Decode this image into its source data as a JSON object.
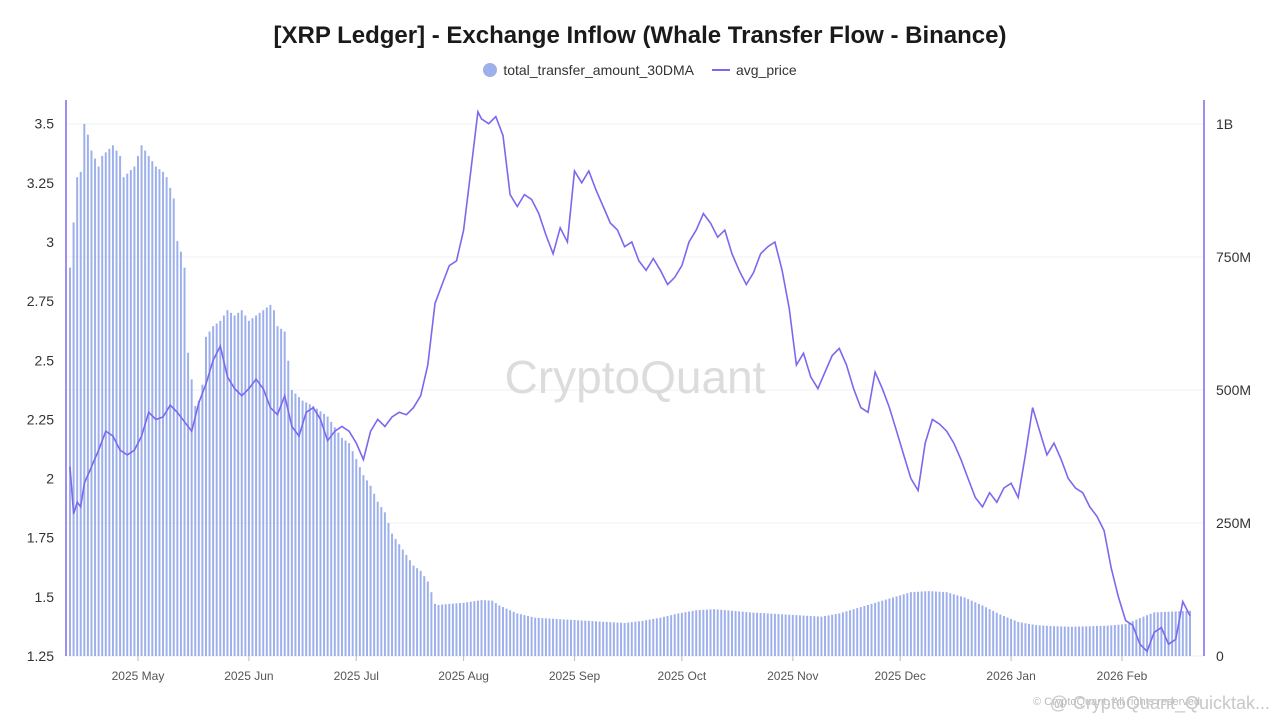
{
  "chart_data": {
    "type": "bar+line",
    "title": "[XRP Ledger] - Exchange Inflow (Whale Transfer Flow - Binance)",
    "legend": [
      {
        "name": "total_transfer_amount_30DMA",
        "marker": "dot",
        "color": "#9db0ec"
      },
      {
        "name": "avg_price",
        "marker": "line",
        "color": "#7b68ee"
      }
    ],
    "left_axis": {
      "series": "avg_price",
      "min": 1.25,
      "max": 3.6,
      "ticks": [
        "3.5",
        "3.25",
        "3",
        "2.75",
        "2.5",
        "2.25",
        "2",
        "1.75",
        "1.5",
        "1.25"
      ],
      "tick_values": [
        3.5,
        3.25,
        3,
        2.75,
        2.5,
        2.25,
        2,
        1.75,
        1.5,
        1.25
      ]
    },
    "right_axis": {
      "series": "total_transfer_amount_30DMA",
      "min": 0,
      "max": 1000000000,
      "ticks": [
        "1B",
        "750M",
        "500M",
        "250M",
        "0"
      ],
      "tick_values": [
        1000000000,
        750000000,
        500000000,
        250000000,
        0
      ]
    },
    "x_axis": {
      "labels": [
        "2025 May",
        "2025 Jun",
        "2025 Jul",
        "2025 Aug",
        "2025 Sep",
        "2025 Oct",
        "2025 Nov",
        "2025 Dec",
        "2026 Jan",
        "2026 Feb"
      ],
      "label_day_index": [
        19,
        50,
        80,
        110,
        141,
        171,
        202,
        232,
        263,
        294
      ],
      "start": "2025-04-12",
      "days": 313
    },
    "transfer_keys": [
      [
        0,
        730
      ],
      [
        2,
        900
      ],
      [
        3,
        910
      ],
      [
        4,
        1000
      ],
      [
        5,
        980
      ],
      [
        6,
        950
      ],
      [
        8,
        920
      ],
      [
        9,
        940
      ],
      [
        12,
        960
      ],
      [
        14,
        940
      ],
      [
        15,
        900
      ],
      [
        18,
        920
      ],
      [
        20,
        960
      ],
      [
        22,
        940
      ],
      [
        24,
        920
      ],
      [
        26,
        910
      ],
      [
        27,
        900
      ],
      [
        28,
        880
      ],
      [
        29,
        860
      ],
      [
        30,
        780
      ],
      [
        31,
        760
      ],
      [
        32,
        730
      ],
      [
        33,
        570
      ],
      [
        34,
        520
      ],
      [
        35,
        470
      ],
      [
        36,
        480
      ],
      [
        37,
        510
      ],
      [
        38,
        600
      ],
      [
        40,
        620
      ],
      [
        42,
        630
      ],
      [
        44,
        650
      ],
      [
        46,
        640
      ],
      [
        48,
        650
      ],
      [
        50,
        630
      ],
      [
        52,
        640
      ],
      [
        54,
        650
      ],
      [
        56,
        660
      ],
      [
        57,
        650
      ],
      [
        58,
        620
      ],
      [
        60,
        610
      ],
      [
        62,
        500
      ],
      [
        65,
        480
      ],
      [
        68,
        470
      ],
      [
        70,
        460
      ],
      [
        72,
        450
      ],
      [
        74,
        430
      ],
      [
        76,
        410
      ],
      [
        78,
        400
      ],
      [
        80,
        370
      ],
      [
        82,
        340
      ],
      [
        84,
        320
      ],
      [
        86,
        290
      ],
      [
        88,
        270
      ],
      [
        90,
        230
      ],
      [
        92,
        210
      ],
      [
        94,
        190
      ],
      [
        96,
        170
      ],
      [
        98,
        160
      ],
      [
        100,
        140
      ],
      [
        101,
        120
      ],
      [
        102,
        98
      ],
      [
        103,
        96
      ],
      [
        106,
        98
      ],
      [
        110,
        100
      ],
      [
        115,
        105
      ],
      [
        118,
        104
      ],
      [
        120,
        95
      ],
      [
        125,
        80
      ],
      [
        130,
        72
      ],
      [
        135,
        70
      ],
      [
        140,
        68
      ],
      [
        145,
        66
      ],
      [
        150,
        64
      ],
      [
        155,
        62
      ],
      [
        160,
        66
      ],
      [
        165,
        72
      ],
      [
        170,
        80
      ],
      [
        175,
        86
      ],
      [
        180,
        88
      ],
      [
        185,
        85
      ],
      [
        190,
        82
      ],
      [
        195,
        80
      ],
      [
        200,
        78
      ],
      [
        205,
        76
      ],
      [
        210,
        74
      ],
      [
        215,
        80
      ],
      [
        220,
        90
      ],
      [
        225,
        100
      ],
      [
        230,
        110
      ],
      [
        235,
        120
      ],
      [
        240,
        122
      ],
      [
        245,
        120
      ],
      [
        250,
        110
      ],
      [
        255,
        95
      ],
      [
        260,
        78
      ],
      [
        265,
        64
      ],
      [
        270,
        58
      ],
      [
        275,
        56
      ],
      [
        280,
        55
      ],
      [
        285,
        56
      ],
      [
        290,
        57
      ],
      [
        295,
        60
      ],
      [
        300,
        74
      ],
      [
        303,
        82
      ],
      [
        313,
        85
      ]
    ],
    "price_keys": [
      [
        0,
        2.05
      ],
      [
        1,
        1.85
      ],
      [
        2,
        1.9
      ],
      [
        3,
        1.88
      ],
      [
        4,
        1.98
      ],
      [
        6,
        2.05
      ],
      [
        8,
        2.12
      ],
      [
        10,
        2.2
      ],
      [
        12,
        2.18
      ],
      [
        14,
        2.12
      ],
      [
        16,
        2.1
      ],
      [
        18,
        2.12
      ],
      [
        20,
        2.18
      ],
      [
        22,
        2.28
      ],
      [
        24,
        2.25
      ],
      [
        26,
        2.26
      ],
      [
        28,
        2.31
      ],
      [
        30,
        2.28
      ],
      [
        32,
        2.24
      ],
      [
        34,
        2.2
      ],
      [
        36,
        2.32
      ],
      [
        38,
        2.4
      ],
      [
        40,
        2.5
      ],
      [
        42,
        2.56
      ],
      [
        44,
        2.43
      ],
      [
        46,
        2.38
      ],
      [
        48,
        2.35
      ],
      [
        50,
        2.38
      ],
      [
        52,
        2.42
      ],
      [
        54,
        2.38
      ],
      [
        56,
        2.3
      ],
      [
        58,
        2.27
      ],
      [
        60,
        2.35
      ],
      [
        62,
        2.22
      ],
      [
        64,
        2.18
      ],
      [
        66,
        2.28
      ],
      [
        68,
        2.3
      ],
      [
        70,
        2.25
      ],
      [
        72,
        2.16
      ],
      [
        74,
        2.2
      ],
      [
        76,
        2.22
      ],
      [
        78,
        2.2
      ],
      [
        80,
        2.15
      ],
      [
        82,
        2.08
      ],
      [
        84,
        2.2
      ],
      [
        86,
        2.25
      ],
      [
        88,
        2.22
      ],
      [
        90,
        2.26
      ],
      [
        92,
        2.28
      ],
      [
        94,
        2.27
      ],
      [
        96,
        2.3
      ],
      [
        98,
        2.35
      ],
      [
        100,
        2.48
      ],
      [
        102,
        2.74
      ],
      [
        104,
        2.82
      ],
      [
        106,
        2.9
      ],
      [
        108,
        2.92
      ],
      [
        110,
        3.05
      ],
      [
        112,
        3.3
      ],
      [
        114,
        3.55
      ],
      [
        115,
        3.52
      ],
      [
        117,
        3.5
      ],
      [
        119,
        3.53
      ],
      [
        121,
        3.45
      ],
      [
        123,
        3.2
      ],
      [
        125,
        3.15
      ],
      [
        127,
        3.2
      ],
      [
        129,
        3.18
      ],
      [
        131,
        3.12
      ],
      [
        133,
        3.03
      ],
      [
        135,
        2.95
      ],
      [
        137,
        3.06
      ],
      [
        139,
        3.0
      ],
      [
        141,
        3.3
      ],
      [
        143,
        3.25
      ],
      [
        145,
        3.3
      ],
      [
        147,
        3.22
      ],
      [
        149,
        3.15
      ],
      [
        151,
        3.08
      ],
      [
        153,
        3.05
      ],
      [
        155,
        2.98
      ],
      [
        157,
        3.0
      ],
      [
        159,
        2.92
      ],
      [
        161,
        2.88
      ],
      [
        163,
        2.93
      ],
      [
        165,
        2.88
      ],
      [
        167,
        2.82
      ],
      [
        169,
        2.85
      ],
      [
        171,
        2.9
      ],
      [
        173,
        3.0
      ],
      [
        175,
        3.05
      ],
      [
        177,
        3.12
      ],
      [
        179,
        3.08
      ],
      [
        181,
        3.02
      ],
      [
        183,
        3.05
      ],
      [
        185,
        2.95
      ],
      [
        187,
        2.88
      ],
      [
        189,
        2.82
      ],
      [
        191,
        2.87
      ],
      [
        193,
        2.95
      ],
      [
        195,
        2.98
      ],
      [
        197,
        3.0
      ],
      [
        199,
        2.88
      ],
      [
        201,
        2.72
      ],
      [
        203,
        2.48
      ],
      [
        205,
        2.53
      ],
      [
        207,
        2.43
      ],
      [
        209,
        2.38
      ],
      [
        211,
        2.45
      ],
      [
        213,
        2.52
      ],
      [
        215,
        2.55
      ],
      [
        217,
        2.48
      ],
      [
        219,
        2.38
      ],
      [
        221,
        2.3
      ],
      [
        223,
        2.28
      ],
      [
        225,
        2.45
      ],
      [
        227,
        2.38
      ],
      [
        229,
        2.3
      ],
      [
        231,
        2.2
      ],
      [
        233,
        2.1
      ],
      [
        235,
        2.0
      ],
      [
        237,
        1.95
      ],
      [
        239,
        2.15
      ],
      [
        241,
        2.25
      ],
      [
        243,
        2.23
      ],
      [
        245,
        2.2
      ],
      [
        247,
        2.15
      ],
      [
        249,
        2.08
      ],
      [
        251,
        2.0
      ],
      [
        253,
        1.92
      ],
      [
        255,
        1.88
      ],
      [
        257,
        1.94
      ],
      [
        259,
        1.9
      ],
      [
        261,
        1.96
      ],
      [
        263,
        1.98
      ],
      [
        265,
        1.92
      ],
      [
        267,
        2.1
      ],
      [
        269,
        2.3
      ],
      [
        271,
        2.2
      ],
      [
        273,
        2.1
      ],
      [
        275,
        2.15
      ],
      [
        277,
        2.08
      ],
      [
        279,
        2.0
      ],
      [
        281,
        1.96
      ],
      [
        283,
        1.94
      ],
      [
        285,
        1.88
      ],
      [
        287,
        1.84
      ],
      [
        289,
        1.78
      ],
      [
        291,
        1.62
      ],
      [
        293,
        1.5
      ],
      [
        295,
        1.4
      ],
      [
        297,
        1.38
      ],
      [
        299,
        1.3
      ],
      [
        301,
        1.27
      ],
      [
        303,
        1.35
      ],
      [
        305,
        1.37
      ],
      [
        307,
        1.3
      ],
      [
        309,
        1.32
      ],
      [
        311,
        1.48
      ],
      [
        313,
        1.42
      ]
    ]
  },
  "watermark": "CryptoQuant",
  "attribution": "@ CryptoQuant_Quicktak...",
  "copyright": "© CryptoQuant. All rights reserved"
}
